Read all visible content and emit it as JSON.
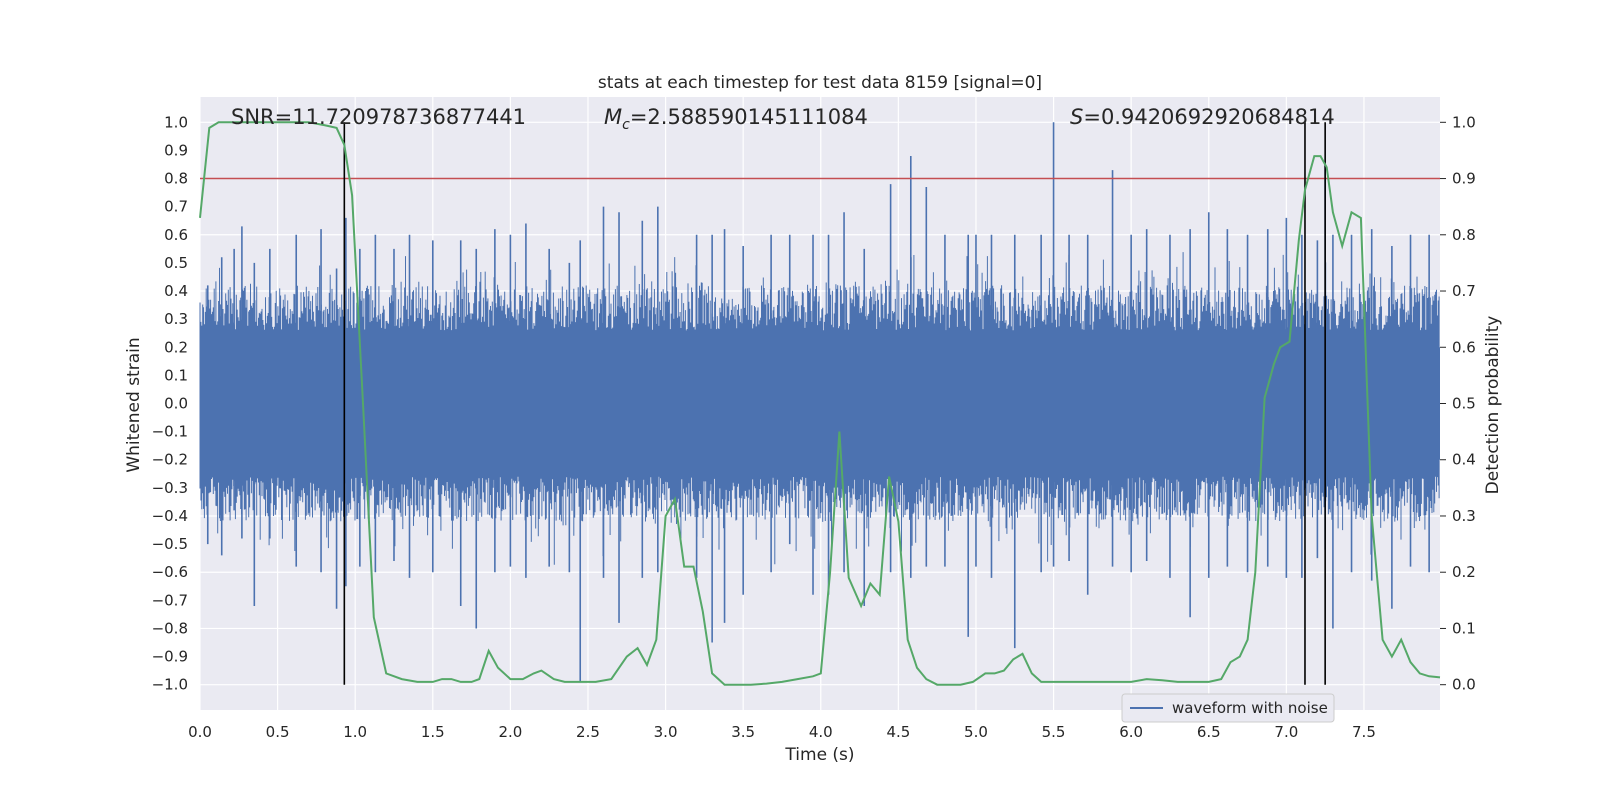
{
  "chart_data": {
    "type": "line",
    "title": "stats at each timestep for test data 8159 [signal=0]",
    "xlabel": "Time (s)",
    "ylabel_left": "Whitened strain",
    "ylabel_right": "Detection probability",
    "xlim": [
      0.0,
      7.99
    ],
    "ylim_left": [
      -1.09,
      1.09
    ],
    "ylim_right": [
      -0.045,
      1.045
    ],
    "grid": true,
    "x_ticks": [
      "0.0",
      "0.5",
      "1.0",
      "1.5",
      "2.0",
      "2.5",
      "3.0",
      "3.5",
      "4.0",
      "4.5",
      "5.0",
      "5.5",
      "6.0",
      "6.5",
      "7.0",
      "7.5"
    ],
    "x_tick_values": [
      0.0,
      0.5,
      1.0,
      1.5,
      2.0,
      2.5,
      3.0,
      3.5,
      4.0,
      4.5,
      5.0,
      5.5,
      6.0,
      6.5,
      7.0,
      7.5
    ],
    "y_left_ticks": [
      "1.0",
      "0.9",
      "0.8",
      "0.7",
      "0.6",
      "0.5",
      "0.4",
      "0.3",
      "0.2",
      "0.1",
      "0.0",
      "−0.1",
      "−0.2",
      "−0.3",
      "−0.4",
      "−0.5",
      "−0.6",
      "−0.7",
      "−0.8",
      "−0.9",
      "−1.0"
    ],
    "y_left_tick_values": [
      1.0,
      0.9,
      0.8,
      0.7,
      0.6,
      0.5,
      0.4,
      0.3,
      0.2,
      0.1,
      0.0,
      -0.1,
      -0.2,
      -0.3,
      -0.4,
      -0.5,
      -0.6,
      -0.7,
      -0.8,
      -0.9,
      -1.0
    ],
    "y_right_ticks": [
      "1.0",
      "0.9",
      "0.8",
      "0.7",
      "0.6",
      "0.5",
      "0.4",
      "0.3",
      "0.2",
      "0.1",
      "0.0"
    ],
    "y_right_tick_values": [
      1.0,
      0.9,
      0.8,
      0.7,
      0.6,
      0.5,
      0.4,
      0.3,
      0.2,
      0.1,
      0.0
    ],
    "annotations": {
      "snr": "SNR=11.720978736877441",
      "mc_symbol": "M",
      "mc_sub": "c",
      "mc_value": "=2.588590145111084",
      "s_symbol": "S",
      "s_value": "=0.9420692920684814"
    },
    "threshold": {
      "value": 0.8,
      "axis": "left",
      "color": "#c44e52"
    },
    "vertical_lines": [
      0.93,
      7.12,
      7.25
    ],
    "waveform": {
      "name": "waveform with noise",
      "color": "#4c72b0",
      "band": 0.2,
      "spikes": [
        [
          0.05,
          0.42,
          -0.5
        ],
        [
          0.14,
          0.52,
          -0.54
        ],
        [
          0.22,
          0.55,
          -0.38
        ],
        [
          0.27,
          0.63,
          -0.48
        ],
        [
          0.35,
          0.5,
          -0.72
        ],
        [
          0.45,
          0.55,
          -0.48
        ],
        [
          0.62,
          0.6,
          -0.58
        ],
        [
          0.78,
          0.62,
          -0.6
        ],
        [
          0.88,
          0.48,
          -0.73
        ],
        [
          0.94,
          0.66,
          -0.65
        ],
        [
          1.03,
          0.55,
          -0.58
        ],
        [
          1.13,
          0.6,
          -0.6
        ],
        [
          1.25,
          0.55,
          -0.56
        ],
        [
          1.35,
          0.6,
          -0.62
        ],
        [
          1.5,
          0.58,
          -0.6
        ],
        [
          1.68,
          0.58,
          -0.72
        ],
        [
          1.78,
          0.55,
          -0.8
        ],
        [
          1.9,
          0.62,
          -0.6
        ],
        [
          2.0,
          0.6,
          -0.58
        ],
        [
          2.1,
          0.64,
          -0.62
        ],
        [
          2.25,
          0.55,
          -0.58
        ],
        [
          2.38,
          0.5,
          -0.6
        ],
        [
          2.45,
          0.58,
          -0.99
        ],
        [
          2.6,
          0.7,
          -0.62
        ],
        [
          2.7,
          0.68,
          -0.78
        ],
        [
          2.85,
          0.65,
          -0.62
        ],
        [
          2.95,
          0.7,
          -0.6
        ],
        [
          3.2,
          0.6,
          -0.62
        ],
        [
          3.3,
          0.6,
          -0.85
        ],
        [
          3.38,
          0.62,
          -0.78
        ],
        [
          3.5,
          0.56,
          -0.68
        ],
        [
          3.68,
          0.6,
          -0.6
        ],
        [
          3.8,
          0.6,
          -0.5
        ],
        [
          3.95,
          0.6,
          -0.68
        ],
        [
          4.05,
          0.6,
          -0.68
        ],
        [
          4.15,
          0.68,
          -0.6
        ],
        [
          4.28,
          0.55,
          -0.72
        ],
        [
          4.45,
          0.78,
          -0.6
        ],
        [
          4.58,
          0.88,
          -0.62
        ],
        [
          4.68,
          0.77,
          -0.58
        ],
        [
          4.8,
          0.6,
          -0.58
        ],
        [
          4.95,
          0.6,
          -0.83
        ],
        [
          5.0,
          0.6,
          -0.58
        ],
        [
          5.1,
          0.6,
          -0.62
        ],
        [
          5.25,
          0.6,
          -0.87
        ],
        [
          5.42,
          0.6,
          -0.6
        ],
        [
          5.5,
          1.0,
          -0.58
        ],
        [
          5.6,
          0.6,
          -0.56
        ],
        [
          5.72,
          0.6,
          -0.68
        ],
        [
          5.88,
          0.83,
          -0.58
        ],
        [
          6.0,
          0.6,
          -0.6
        ],
        [
          6.1,
          0.62,
          -0.56
        ],
        [
          6.25,
          0.6,
          -0.62
        ],
        [
          6.38,
          0.62,
          -0.76
        ],
        [
          6.5,
          0.68,
          -0.62
        ],
        [
          6.62,
          0.62,
          -0.58
        ],
        [
          6.75,
          0.6,
          -0.6
        ],
        [
          6.88,
          0.62,
          -0.58
        ],
        [
          7.0,
          0.66,
          -0.62
        ],
        [
          7.1,
          0.6,
          -0.62
        ],
        [
          7.2,
          0.58,
          -0.55
        ],
        [
          7.25,
          0.85,
          -0.52
        ],
        [
          7.3,
          0.6,
          -0.8
        ],
        [
          7.42,
          0.6,
          -0.6
        ],
        [
          7.55,
          0.62,
          -0.63
        ],
        [
          7.68,
          0.56,
          -0.73
        ],
        [
          7.8,
          0.6,
          -0.58
        ],
        [
          7.92,
          0.6,
          -0.6
        ]
      ]
    },
    "probability": {
      "color": "#55a868",
      "x": [
        0.0,
        0.06,
        0.12,
        0.2,
        0.3,
        0.5,
        0.7,
        0.8,
        0.88,
        0.93,
        0.98,
        1.05,
        1.12,
        1.2,
        1.3,
        1.4,
        1.5,
        1.56,
        1.62,
        1.68,
        1.75,
        1.8,
        1.86,
        1.92,
        2.0,
        2.08,
        2.15,
        2.2,
        2.28,
        2.35,
        2.45,
        2.55,
        2.65,
        2.75,
        2.82,
        2.88,
        2.94,
        3.0,
        3.06,
        3.12,
        3.18,
        3.24,
        3.3,
        3.38,
        3.46,
        3.55,
        3.65,
        3.75,
        3.85,
        3.95,
        4.0,
        4.06,
        4.12,
        4.18,
        4.26,
        4.32,
        4.38,
        4.44,
        4.5,
        4.56,
        4.62,
        4.68,
        4.75,
        4.82,
        4.9,
        4.98,
        5.06,
        5.12,
        5.18,
        5.24,
        5.3,
        5.36,
        5.42,
        5.5,
        5.6,
        5.7,
        5.8,
        5.9,
        6.0,
        6.1,
        6.2,
        6.3,
        6.4,
        6.5,
        6.58,
        6.64,
        6.7,
        6.75,
        6.8,
        6.86,
        6.92,
        6.96,
        7.02,
        7.08,
        7.12,
        7.18,
        7.22,
        7.26,
        7.3,
        7.36,
        7.42,
        7.48,
        7.55,
        7.62,
        7.68,
        7.74,
        7.8,
        7.86,
        7.92,
        7.99
      ],
      "y": [
        0.83,
        0.99,
        1.0,
        1.0,
        1.0,
        1.0,
        1.0,
        0.995,
        0.99,
        0.96,
        0.87,
        0.5,
        0.12,
        0.02,
        0.01,
        0.005,
        0.005,
        0.01,
        0.01,
        0.005,
        0.005,
        0.01,
        0.06,
        0.03,
        0.01,
        0.01,
        0.02,
        0.025,
        0.01,
        0.005,
        0.005,
        0.005,
        0.01,
        0.05,
        0.065,
        0.035,
        0.08,
        0.3,
        0.33,
        0.21,
        0.21,
        0.13,
        0.02,
        0.0,
        0.0,
        0.0,
        0.002,
        0.005,
        0.01,
        0.015,
        0.02,
        0.2,
        0.45,
        0.19,
        0.14,
        0.18,
        0.16,
        0.37,
        0.29,
        0.08,
        0.03,
        0.01,
        0.0,
        0.0,
        0.0,
        0.005,
        0.02,
        0.02,
        0.025,
        0.045,
        0.055,
        0.02,
        0.005,
        0.005,
        0.005,
        0.005,
        0.005,
        0.005,
        0.005,
        0.01,
        0.008,
        0.005,
        0.005,
        0.005,
        0.01,
        0.04,
        0.05,
        0.08,
        0.2,
        0.51,
        0.57,
        0.6,
        0.61,
        0.79,
        0.88,
        0.94,
        0.94,
        0.92,
        0.84,
        0.78,
        0.84,
        0.83,
        0.3,
        0.08,
        0.05,
        0.08,
        0.04,
        0.02,
        0.015,
        0.013
      ]
    },
    "legend": {
      "label": "waveform with noise",
      "position": "lower-right"
    }
  }
}
